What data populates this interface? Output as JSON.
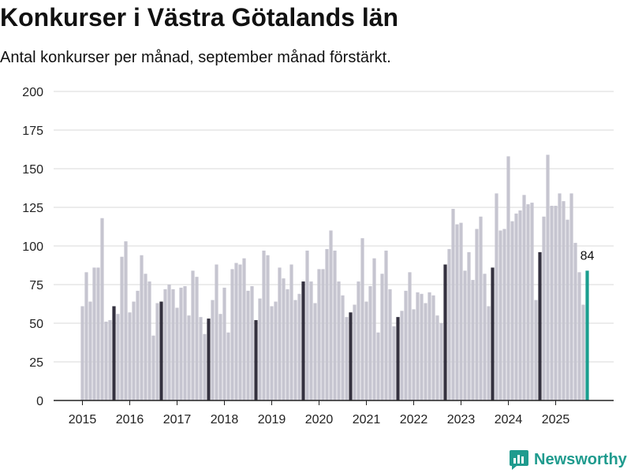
{
  "title": "Konkurser i Västra Götalands län",
  "subtitle": "Antal konkurser per månad, september månad förstärkt.",
  "brand": "Newsworthy",
  "colors": {
    "bar": "#c6c5d0",
    "september": "#34313f",
    "latest": "#1a9e8f",
    "brand": "#1f9b8e"
  },
  "chart_data": {
    "type": "bar",
    "x_ticks": [
      "2015",
      "2016",
      "2017",
      "2018",
      "2019",
      "2020",
      "2021",
      "2022",
      "2023",
      "2024",
      "2025"
    ],
    "y_ticks": [
      0,
      25,
      50,
      75,
      100,
      125,
      150,
      175,
      200
    ],
    "ylim": [
      0,
      200
    ],
    "start": "2015-01",
    "highlight_month": "september",
    "annotation": "84",
    "values": [
      61,
      83,
      64,
      86,
      86,
      118,
      51,
      52,
      61,
      56,
      93,
      103,
      57,
      64,
      71,
      94,
      82,
      77,
      42,
      63,
      64,
      72,
      75,
      72,
      60,
      73,
      74,
      55,
      84,
      80,
      54,
      43,
      53,
      65,
      88,
      56,
      73,
      44,
      85,
      89,
      88,
      92,
      71,
      74,
      52,
      66,
      97,
      94,
      61,
      64,
      86,
      79,
      72,
      88,
      65,
      69,
      77,
      97,
      77,
      63,
      85,
      85,
      98,
      110,
      97,
      77,
      68,
      54,
      57,
      62,
      77,
      105,
      64,
      74,
      92,
      44,
      82,
      97,
      72,
      48,
      54,
      58,
      71,
      83,
      59,
      70,
      69,
      63,
      70,
      68,
      55,
      50,
      88,
      98,
      124,
      114,
      115,
      84,
      96,
      78,
      111,
      119,
      82,
      61,
      86,
      134,
      110,
      111,
      158,
      116,
      121,
      123,
      133,
      127,
      128,
      65,
      96,
      119,
      159,
      126,
      126,
      134,
      129,
      117,
      134,
      102,
      83,
      62,
      84
    ]
  }
}
